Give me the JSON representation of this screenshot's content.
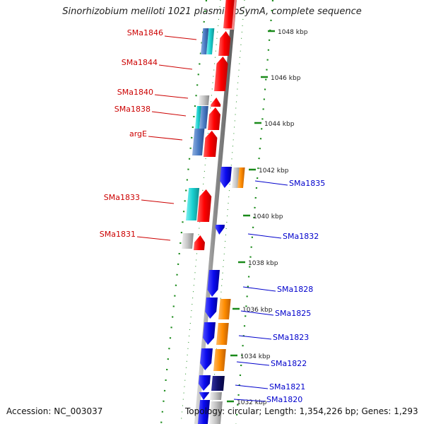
{
  "title": "Sinorhizobium meliloti 1021 plasmid pSymA, complete sequence",
  "accession": "Accession: NC_003037",
  "topology": "Topology: circular; Length: 1,354,226 bp; Genes: 1,293",
  "colors": {
    "red_label": "#cc0000",
    "blue_label": "#0000cc",
    "backbone": "#9a9a9a",
    "tick": "#1a8a1a",
    "gene_red": "#ff1010",
    "gene_blue": "#1010ee",
    "gene_cyan": "#20d8d8",
    "gene_steel": "#5a8ad0",
    "gene_orange": "#ff8c10",
    "gene_navy": "#101078",
    "gene_gray": "#c0c0c0",
    "gene_pink": "#f08080"
  },
  "kbp_labels": [
    "1048 kbp",
    "1046 kbp",
    "1044 kbp",
    "1042 kbp",
    "1040 kbp",
    "1038 kbp",
    "1036 kbp",
    "1034 kbp",
    "1032 kbp"
  ],
  "left_genes": [
    "SMa1846",
    "SMa1844",
    "SMa1840",
    "SMa1838",
    "argE",
    "SMa1833",
    "SMa1831"
  ],
  "right_genes": [
    "SMa1835",
    "SMa1832",
    "SMa1828",
    "SMa1825",
    "SMa1823",
    "SMa1822",
    "SMa1821",
    "SMa1820"
  ],
  "features": [
    {
      "track": "outer-forward",
      "color": "gene_red"
    },
    {
      "track": "outer-forward",
      "color": "gene_red"
    },
    {
      "track": "outer-forward",
      "color": "gene_red"
    },
    {
      "track": "outer-forward",
      "color": "gene_red"
    },
    {
      "track": "outer-forward",
      "color": "gene_red"
    },
    {
      "track": "outer-forward",
      "color": "gene_red"
    },
    {
      "track": "outer-forward",
      "color": "gene_red"
    },
    {
      "track": "inner-forward",
      "color": "gene_cyan"
    },
    {
      "track": "inner-forward",
      "color": "gene_steel"
    },
    {
      "track": "inner-forward",
      "color": "gene_gray"
    },
    {
      "track": "reverse",
      "color": "gene_blue"
    },
    {
      "track": "reverse",
      "color": "gene_orange"
    },
    {
      "track": "reverse",
      "color": "gene_navy"
    }
  ]
}
